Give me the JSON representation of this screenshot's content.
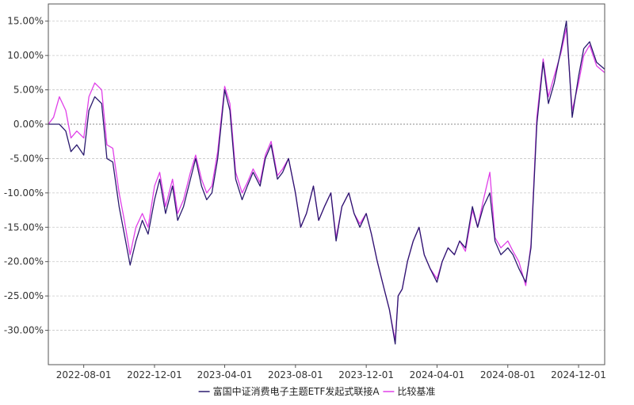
{
  "chart_data": {
    "type": "line",
    "title": "",
    "xlabel": "",
    "ylabel": "",
    "y_unit": "%",
    "ylim": [
      -35,
      17.5
    ],
    "y_ticks": [
      15,
      10,
      5,
      0,
      -5,
      -10,
      -15,
      -20,
      -25,
      -30
    ],
    "y_tick_labels": [
      "15.00%",
      "10.00%",
      "5.00%",
      "0.00%",
      "-5.00%",
      "-10.00%",
      "-15.00%",
      "-20.00%",
      "-25.00%",
      "-30.00%"
    ],
    "x_range": [
      "2022-06-01",
      "2025-01-15"
    ],
    "x_ticks": [
      "2022-08-01",
      "2022-12-01",
      "2023-04-01",
      "2023-08-01",
      "2023-12-01",
      "2024-04-01",
      "2024-08-01",
      "2024-12-01"
    ],
    "grid": true,
    "legend_position": "bottom-center",
    "series": [
      {
        "name": "富国中证消费电子主题ETF发起式联接A",
        "color": "#2a1a6e",
        "points": [
          [
            "2022-06-01",
            0
          ],
          [
            "2022-06-20",
            0
          ],
          [
            "2022-07-01",
            -1
          ],
          [
            "2022-07-10",
            -4
          ],
          [
            "2022-07-20",
            -3
          ],
          [
            "2022-08-01",
            -4.5
          ],
          [
            "2022-08-10",
            2
          ],
          [
            "2022-08-20",
            4
          ],
          [
            "2022-09-01",
            3
          ],
          [
            "2022-09-10",
            -5
          ],
          [
            "2022-09-20",
            -5.5
          ],
          [
            "2022-10-01",
            -12
          ],
          [
            "2022-10-10",
            -16
          ],
          [
            "2022-10-20",
            -20.5
          ],
          [
            "2022-10-30",
            -17
          ],
          [
            "2022-11-10",
            -14
          ],
          [
            "2022-11-20",
            -16
          ],
          [
            "2022-12-01",
            -11
          ],
          [
            "2022-12-10",
            -8
          ],
          [
            "2022-12-20",
            -13
          ],
          [
            "2023-01-01",
            -9
          ],
          [
            "2023-01-10",
            -14
          ],
          [
            "2023-01-20",
            -12
          ],
          [
            "2023-02-01",
            -8
          ],
          [
            "2023-02-10",
            -5
          ],
          [
            "2023-02-20",
            -9
          ],
          [
            "2023-03-01",
            -11
          ],
          [
            "2023-03-10",
            -10
          ],
          [
            "2023-03-20",
            -5
          ],
          [
            "2023-04-01",
            5
          ],
          [
            "2023-04-10",
            2
          ],
          [
            "2023-04-20",
            -8
          ],
          [
            "2023-05-01",
            -11
          ],
          [
            "2023-05-10",
            -9
          ],
          [
            "2023-05-20",
            -7
          ],
          [
            "2023-06-01",
            -9
          ],
          [
            "2023-06-10",
            -5
          ],
          [
            "2023-06-20",
            -3
          ],
          [
            "2023-07-01",
            -8
          ],
          [
            "2023-07-10",
            -7
          ],
          [
            "2023-07-20",
            -5
          ],
          [
            "2023-08-01",
            -10
          ],
          [
            "2023-08-10",
            -15
          ],
          [
            "2023-08-20",
            -13
          ],
          [
            "2023-09-01",
            -9
          ],
          [
            "2023-09-10",
            -14
          ],
          [
            "2023-09-20",
            -12
          ],
          [
            "2023-10-01",
            -10
          ],
          [
            "2023-10-10",
            -17
          ],
          [
            "2023-10-20",
            -12
          ],
          [
            "2023-11-01",
            -10
          ],
          [
            "2023-11-10",
            -13
          ],
          [
            "2023-11-20",
            -15
          ],
          [
            "2023-12-01",
            -13
          ],
          [
            "2023-12-10",
            -16
          ],
          [
            "2023-12-20",
            -20
          ],
          [
            "2024-01-01",
            -24
          ],
          [
            "2024-01-10",
            -27
          ],
          [
            "2024-01-20",
            -32
          ],
          [
            "2024-01-25",
            -25
          ],
          [
            "2024-02-01",
            -24
          ],
          [
            "2024-02-10",
            -20
          ],
          [
            "2024-02-20",
            -17
          ],
          [
            "2024-03-01",
            -15
          ],
          [
            "2024-03-10",
            -19
          ],
          [
            "2024-03-20",
            -21
          ],
          [
            "2024-04-01",
            -23
          ],
          [
            "2024-04-10",
            -20
          ],
          [
            "2024-04-20",
            -18
          ],
          [
            "2024-05-01",
            -19
          ],
          [
            "2024-05-10",
            -17
          ],
          [
            "2024-05-20",
            -18
          ],
          [
            "2024-06-01",
            -12
          ],
          [
            "2024-06-10",
            -15
          ],
          [
            "2024-06-20",
            -12
          ],
          [
            "2024-07-01",
            -10
          ],
          [
            "2024-07-10",
            -17
          ],
          [
            "2024-07-20",
            -19
          ],
          [
            "2024-08-01",
            -18
          ],
          [
            "2024-08-10",
            -19
          ],
          [
            "2024-08-20",
            -21
          ],
          [
            "2024-09-01",
            -23
          ],
          [
            "2024-09-10",
            -18
          ],
          [
            "2024-09-20",
            0
          ],
          [
            "2024-10-01",
            9
          ],
          [
            "2024-10-10",
            3
          ],
          [
            "2024-10-20",
            6
          ],
          [
            "2024-11-01",
            11
          ],
          [
            "2024-11-10",
            15
          ],
          [
            "2024-11-20",
            1
          ],
          [
            "2024-12-01",
            7
          ],
          [
            "2024-12-10",
            11
          ],
          [
            "2024-12-20",
            12
          ],
          [
            "2025-01-01",
            9
          ],
          [
            "2025-01-15",
            8
          ]
        ]
      },
      {
        "name": "比较基准",
        "color": "#e040e8",
        "points": [
          [
            "2022-06-01",
            0
          ],
          [
            "2022-06-10",
            1
          ],
          [
            "2022-06-20",
            4
          ],
          [
            "2022-07-01",
            2
          ],
          [
            "2022-07-10",
            -2
          ],
          [
            "2022-07-20",
            -1
          ],
          [
            "2022-08-01",
            -2
          ],
          [
            "2022-08-10",
            4
          ],
          [
            "2022-08-20",
            6
          ],
          [
            "2022-09-01",
            5
          ],
          [
            "2022-09-10",
            -3
          ],
          [
            "2022-09-20",
            -3.5
          ],
          [
            "2022-10-01",
            -10
          ],
          [
            "2022-10-10",
            -14
          ],
          [
            "2022-10-20",
            -19
          ],
          [
            "2022-10-30",
            -15
          ],
          [
            "2022-11-10",
            -13
          ],
          [
            "2022-11-20",
            -15
          ],
          [
            "2022-12-01",
            -9
          ],
          [
            "2022-12-10",
            -7
          ],
          [
            "2022-12-20",
            -12
          ],
          [
            "2023-01-01",
            -8
          ],
          [
            "2023-01-10",
            -13
          ],
          [
            "2023-01-20",
            -11
          ],
          [
            "2023-02-01",
            -7
          ],
          [
            "2023-02-10",
            -4.5
          ],
          [
            "2023-02-20",
            -8
          ],
          [
            "2023-03-01",
            -10
          ],
          [
            "2023-03-10",
            -9
          ],
          [
            "2023-03-20",
            -4
          ],
          [
            "2023-04-01",
            5.5
          ],
          [
            "2023-04-10",
            3
          ],
          [
            "2023-04-20",
            -7
          ],
          [
            "2023-05-01",
            -10
          ],
          [
            "2023-05-10",
            -8.5
          ],
          [
            "2023-05-20",
            -6.5
          ],
          [
            "2023-06-01",
            -8.5
          ],
          [
            "2023-06-10",
            -4.5
          ],
          [
            "2023-06-20",
            -2.5
          ],
          [
            "2023-07-01",
            -7.5
          ],
          [
            "2023-07-10",
            -6.5
          ],
          [
            "2023-07-20",
            -5
          ],
          [
            "2023-08-01",
            -10
          ],
          [
            "2023-08-10",
            -15
          ],
          [
            "2023-08-20",
            -13
          ],
          [
            "2023-09-01",
            -9
          ],
          [
            "2023-09-10",
            -14
          ],
          [
            "2023-09-20",
            -12
          ],
          [
            "2023-10-01",
            -10
          ],
          [
            "2023-10-10",
            -16.5
          ],
          [
            "2023-10-20",
            -12
          ],
          [
            "2023-11-01",
            -10
          ],
          [
            "2023-11-10",
            -13
          ],
          [
            "2023-11-20",
            -14.5
          ],
          [
            "2023-12-01",
            -13
          ],
          [
            "2023-12-10",
            -16
          ],
          [
            "2023-12-20",
            -20
          ],
          [
            "2024-01-01",
            -24
          ],
          [
            "2024-01-10",
            -27
          ],
          [
            "2024-01-20",
            -31.5
          ],
          [
            "2024-01-25",
            -25
          ],
          [
            "2024-02-01",
            -24
          ],
          [
            "2024-02-10",
            -20
          ],
          [
            "2024-02-20",
            -17
          ],
          [
            "2024-03-01",
            -15
          ],
          [
            "2024-03-10",
            -19
          ],
          [
            "2024-03-20",
            -21
          ],
          [
            "2024-04-01",
            -22.5
          ],
          [
            "2024-04-10",
            -20
          ],
          [
            "2024-04-20",
            -18
          ],
          [
            "2024-05-01",
            -19
          ],
          [
            "2024-05-10",
            -17
          ],
          [
            "2024-05-20",
            -18.5
          ],
          [
            "2024-06-01",
            -12.5
          ],
          [
            "2024-06-10",
            -15
          ],
          [
            "2024-06-20",
            -11
          ],
          [
            "2024-07-01",
            -7
          ],
          [
            "2024-07-10",
            -16.5
          ],
          [
            "2024-07-20",
            -18
          ],
          [
            "2024-08-01",
            -17
          ],
          [
            "2024-08-10",
            -18.5
          ],
          [
            "2024-08-20",
            -20
          ],
          [
            "2024-09-01",
            -23.5
          ],
          [
            "2024-09-10",
            -17.5
          ],
          [
            "2024-09-20",
            1
          ],
          [
            "2024-10-01",
            9.5
          ],
          [
            "2024-10-10",
            4
          ],
          [
            "2024-10-20",
            7
          ],
          [
            "2024-11-01",
            10.5
          ],
          [
            "2024-11-10",
            14
          ],
          [
            "2024-11-20",
            2
          ],
          [
            "2024-12-01",
            6
          ],
          [
            "2024-12-10",
            10
          ],
          [
            "2024-12-20",
            11.5
          ],
          [
            "2025-01-01",
            8.5
          ],
          [
            "2025-01-15",
            7.5
          ]
        ]
      }
    ]
  }
}
